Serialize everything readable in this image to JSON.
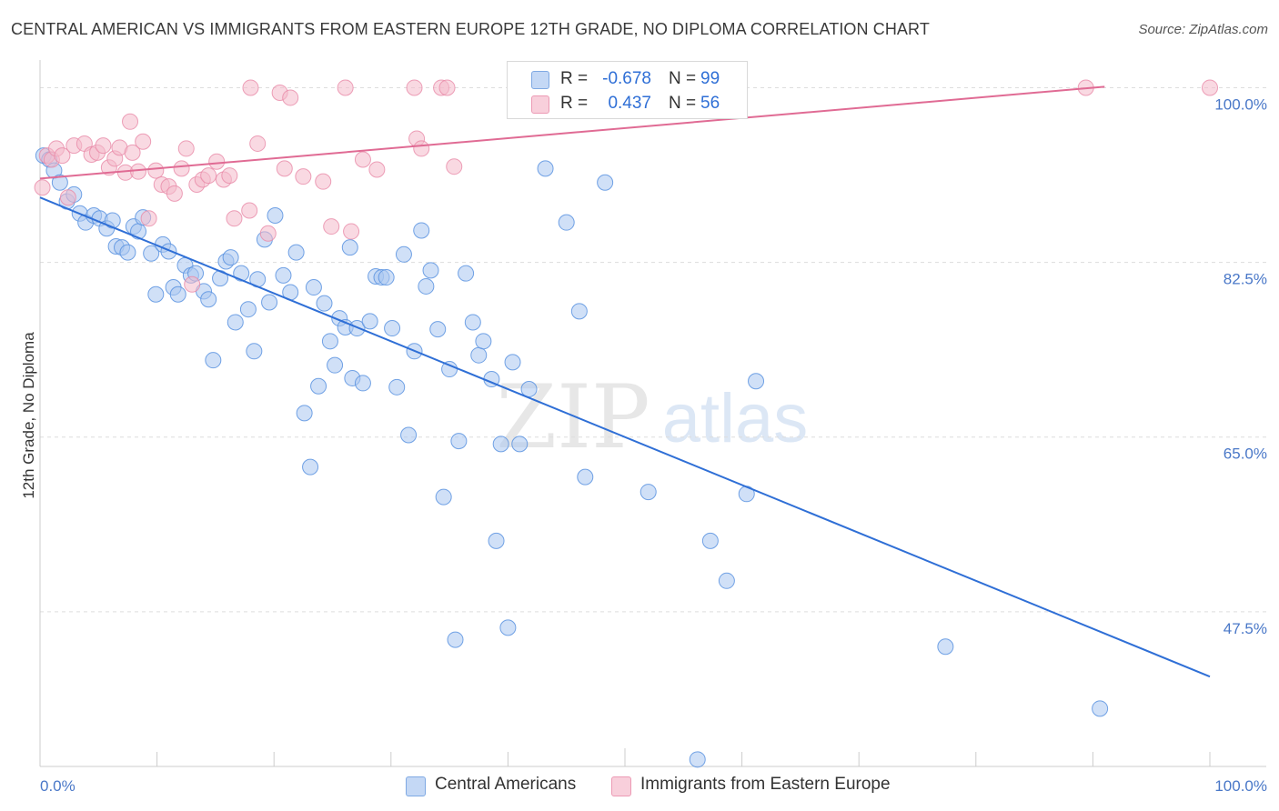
{
  "header": {
    "title": "CENTRAL AMERICAN VS IMMIGRANTS FROM EASTERN EUROPE 12TH GRADE, NO DIPLOMA CORRELATION CHART",
    "source": "Source: ZipAtlas.com"
  },
  "watermark": {
    "zip": "ZIP",
    "atlas": "atlas"
  },
  "legend_box": {
    "rows": [
      {
        "r_label": "R =",
        "r_value": "-0.678",
        "n_label": "N =",
        "n_value": "99",
        "color": "#a9c6f0"
      },
      {
        "r_label": "R =",
        "r_value": "0.437",
        "n_label": "N =",
        "n_value": "56",
        "color": "#f4b9cb"
      }
    ]
  },
  "bottom_legend": {
    "items": [
      {
        "label": "Central Americans",
        "color": "#a9c6f0"
      },
      {
        "label": "Immigrants from Eastern Europe",
        "color": "#f4b9cb"
      }
    ]
  },
  "chart_data": {
    "type": "scatter",
    "title": "CENTRAL AMERICAN VS IMMIGRANTS FROM EASTERN EUROPE 12TH GRADE, NO DIPLOMA CORRELATION CHART",
    "xlabel": "",
    "ylabel": "12th Grade, No Diploma",
    "xlim": [
      0,
      100
    ],
    "ylim": [
      32,
      101.5
    ],
    "x_tick_labels": [
      "0.0%",
      "100.0%"
    ],
    "y_ticks": [
      47.5,
      65.0,
      82.5,
      100.0
    ],
    "y_tick_labels": [
      "47.5%",
      "65.0%",
      "82.5%",
      "100.0%"
    ],
    "grid": true,
    "legend": "top-center",
    "series": [
      {
        "name": "Central Americans",
        "color": "#5b93e0",
        "fill": "#a9c6f0",
        "trend": {
          "x": [
            0,
            100
          ],
          "y": [
            89.0,
            41.0
          ],
          "color": "#2f6fd6"
        },
        "points": [
          [
            0.3,
            93.2
          ],
          [
            0.8,
            92.8
          ],
          [
            1.2,
            91.7
          ],
          [
            1.7,
            90.5
          ],
          [
            2.3,
            88.6
          ],
          [
            2.9,
            89.3
          ],
          [
            3.4,
            87.4
          ],
          [
            3.9,
            86.5
          ],
          [
            4.6,
            87.2
          ],
          [
            5.1,
            86.9
          ],
          [
            5.7,
            85.9
          ],
          [
            6.2,
            86.7
          ],
          [
            6.5,
            84.1
          ],
          [
            7.0,
            84.0
          ],
          [
            7.5,
            83.5
          ],
          [
            8.0,
            86.1
          ],
          [
            8.4,
            85.6
          ],
          [
            8.8,
            87.0
          ],
          [
            9.5,
            83.4
          ],
          [
            9.9,
            79.3
          ],
          [
            10.5,
            84.3
          ],
          [
            11.0,
            83.6
          ],
          [
            11.4,
            80.0
          ],
          [
            11.8,
            79.3
          ],
          [
            12.4,
            82.2
          ],
          [
            12.9,
            81.2
          ],
          [
            13.3,
            81.4
          ],
          [
            14.0,
            79.6
          ],
          [
            14.4,
            78.8
          ],
          [
            14.8,
            72.7
          ],
          [
            15.4,
            80.9
          ],
          [
            15.9,
            82.6
          ],
          [
            16.3,
            83.0
          ],
          [
            16.7,
            76.5
          ],
          [
            17.2,
            81.4
          ],
          [
            17.8,
            77.8
          ],
          [
            18.3,
            73.6
          ],
          [
            18.6,
            80.8
          ],
          [
            19.2,
            84.8
          ],
          [
            19.6,
            78.5
          ],
          [
            20.1,
            87.2
          ],
          [
            20.8,
            81.2
          ],
          [
            21.4,
            79.5
          ],
          [
            21.9,
            83.5
          ],
          [
            22.6,
            67.4
          ],
          [
            23.1,
            62.0
          ],
          [
            23.4,
            80.0
          ],
          [
            23.8,
            70.1
          ],
          [
            24.3,
            78.4
          ],
          [
            24.8,
            74.6
          ],
          [
            25.2,
            72.2
          ],
          [
            25.6,
            76.9
          ],
          [
            26.1,
            76.0
          ],
          [
            26.7,
            70.9
          ],
          [
            27.1,
            75.9
          ],
          [
            27.6,
            70.4
          ],
          [
            28.2,
            76.6
          ],
          [
            28.7,
            81.1
          ],
          [
            29.2,
            81.0
          ],
          [
            29.6,
            81.0
          ],
          [
            30.1,
            75.9
          ],
          [
            30.5,
            70.0
          ],
          [
            31.1,
            83.3
          ],
          [
            31.5,
            65.2
          ],
          [
            32.0,
            73.6
          ],
          [
            32.6,
            85.7
          ],
          [
            33.0,
            80.1
          ],
          [
            33.4,
            81.7
          ],
          [
            34.0,
            75.8
          ],
          [
            34.5,
            59.0
          ],
          [
            35.0,
            71.8
          ],
          [
            35.5,
            44.7
          ],
          [
            35.8,
            64.6
          ],
          [
            36.4,
            81.4
          ],
          [
            37.0,
            76.5
          ],
          [
            37.5,
            73.2
          ],
          [
            37.9,
            74.6
          ],
          [
            38.6,
            70.8
          ],
          [
            39.0,
            54.6
          ],
          [
            39.4,
            64.3
          ],
          [
            40.0,
            45.9
          ],
          [
            40.4,
            72.5
          ],
          [
            41.0,
            64.3
          ],
          [
            41.8,
            69.8
          ],
          [
            43.2,
            91.9
          ],
          [
            46.1,
            77.6
          ],
          [
            46.6,
            61.0
          ],
          [
            48.3,
            90.5
          ],
          [
            49.7,
            100.3
          ],
          [
            52.0,
            59.5
          ],
          [
            57.3,
            54.6
          ],
          [
            58.7,
            50.6
          ],
          [
            60.4,
            59.3
          ],
          [
            61.2,
            70.6
          ],
          [
            77.4,
            44.0
          ],
          [
            90.6,
            37.8
          ],
          [
            56.2,
            32.7
          ],
          [
            45.0,
            86.5
          ],
          [
            26.5,
            84.0
          ]
        ]
      },
      {
        "name": "Immigrants from Eastern Europe",
        "color": "#e98aa8",
        "fill": "#f4b9cb",
        "trend": {
          "x": [
            0,
            91
          ],
          "y": [
            90.9,
            100.1
          ],
          "color": "#e06b94"
        },
        "points": [
          [
            0.2,
            90.0
          ],
          [
            0.6,
            93.2
          ],
          [
            1.0,
            92.8
          ],
          [
            1.4,
            93.9
          ],
          [
            1.9,
            93.2
          ],
          [
            2.4,
            89.0
          ],
          [
            2.9,
            94.2
          ],
          [
            3.8,
            94.4
          ],
          [
            4.4,
            93.3
          ],
          [
            4.9,
            93.5
          ],
          [
            5.4,
            94.2
          ],
          [
            5.9,
            92.0
          ],
          [
            6.4,
            92.9
          ],
          [
            6.8,
            94.0
          ],
          [
            7.3,
            91.5
          ],
          [
            7.9,
            93.5
          ],
          [
            8.4,
            91.6
          ],
          [
            8.8,
            94.6
          ],
          [
            9.3,
            86.9
          ],
          [
            9.9,
            91.7
          ],
          [
            10.4,
            90.3
          ],
          [
            11.0,
            90.1
          ],
          [
            11.5,
            89.4
          ],
          [
            12.1,
            91.9
          ],
          [
            12.5,
            93.9
          ],
          [
            13.0,
            80.3
          ],
          [
            13.4,
            90.3
          ],
          [
            13.9,
            90.8
          ],
          [
            14.4,
            91.2
          ],
          [
            15.1,
            92.6
          ],
          [
            15.7,
            90.8
          ],
          [
            16.2,
            91.2
          ],
          [
            16.6,
            86.9
          ],
          [
            17.9,
            87.7
          ],
          [
            18.6,
            94.4
          ],
          [
            19.5,
            85.4
          ],
          [
            20.9,
            91.9
          ],
          [
            22.5,
            91.1
          ],
          [
            24.2,
            90.6
          ],
          [
            24.9,
            86.1
          ],
          [
            26.6,
            85.6
          ],
          [
            27.6,
            92.8
          ],
          [
            28.8,
            91.8
          ],
          [
            32.2,
            94.9
          ],
          [
            32.6,
            93.9
          ],
          [
            35.4,
            92.1
          ],
          [
            18.0,
            100.0
          ],
          [
            20.5,
            99.5
          ],
          [
            21.4,
            99.0
          ],
          [
            26.1,
            100.0
          ],
          [
            32.0,
            100.0
          ],
          [
            34.3,
            100.0
          ],
          [
            34.8,
            100.0
          ],
          [
            89.4,
            100.0
          ],
          [
            100.0,
            100.0
          ],
          [
            7.7,
            96.6
          ]
        ]
      }
    ]
  }
}
